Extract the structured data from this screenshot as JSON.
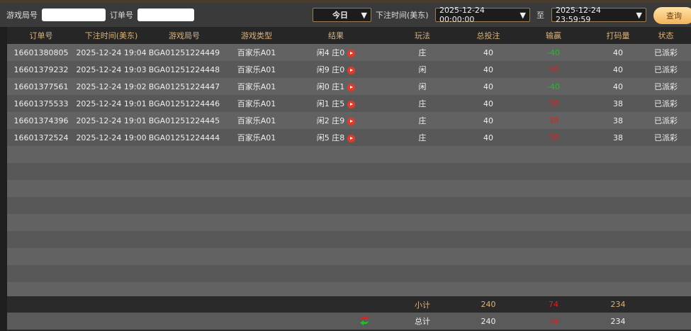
{
  "filters": {
    "round_label": "游戏局号",
    "round_value": "",
    "order_label": "订单号",
    "order_value": "",
    "period": "今日",
    "time_label": "下注时间(美东)",
    "start": "2025-12-24 00:00:00",
    "to": "至",
    "end": "2025-12-24 23:59:59",
    "query": "查询"
  },
  "columns": [
    "订单号",
    "下注时间(美东)",
    "游戏局号",
    "游戏类型",
    "结果",
    "玩法",
    "总投注",
    "输赢",
    "打码量",
    "状态"
  ],
  "rows": [
    {
      "order": "16601380805",
      "time": "2025-12-24 19:04",
      "round": "BGA01251224449",
      "type": "百家乐A01",
      "result": "闲4 庄0",
      "play": "庄",
      "bet": "40",
      "win": "-40",
      "code": "40",
      "status": "已派彩"
    },
    {
      "order": "16601379232",
      "time": "2025-12-24 19:03",
      "round": "BGA01251224448",
      "type": "百家乐A01",
      "result": "闲9 庄0",
      "play": "闲",
      "bet": "40",
      "win": "40",
      "code": "40",
      "status": "已派彩"
    },
    {
      "order": "16601377561",
      "time": "2025-12-24 19:02",
      "round": "BGA01251224447",
      "type": "百家乐A01",
      "result": "闲0 庄1",
      "play": "闲",
      "bet": "40",
      "win": "-40",
      "code": "40",
      "status": "已派彩"
    },
    {
      "order": "16601375533",
      "time": "2025-12-24 19:01",
      "round": "BGA01251224446",
      "type": "百家乐A01",
      "result": "闲1 庄5",
      "play": "庄",
      "bet": "40",
      "win": "38",
      "code": "38",
      "status": "已派彩"
    },
    {
      "order": "16601374396",
      "time": "2025-12-24 19:01",
      "round": "BGA01251224445",
      "type": "百家乐A01",
      "result": "闲2 庄9",
      "play": "庄",
      "bet": "40",
      "win": "38",
      "code": "38",
      "status": "已派彩"
    },
    {
      "order": "16601372524",
      "time": "2025-12-24 19:00",
      "round": "BGA01251224444",
      "type": "百家乐A01",
      "result": "闲5 庄8",
      "play": "庄",
      "bet": "40",
      "win": "38",
      "code": "38",
      "status": "已派彩"
    }
  ],
  "subtotal": {
    "label": "小计",
    "bet": "240",
    "win": "74",
    "code": "234"
  },
  "total": {
    "label": "总计",
    "bet": "240",
    "win": "74",
    "code": "234"
  },
  "colors": {
    "gain": "#e02020",
    "loss": "#20c020",
    "header_text": "#d9b27a"
  }
}
